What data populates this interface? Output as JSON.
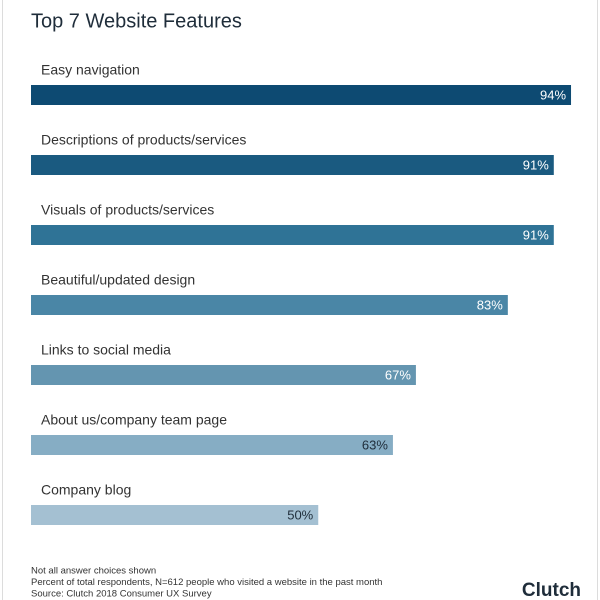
{
  "chart_data": {
    "type": "hbar",
    "title": "Top 7 Website Features",
    "categories": [
      "Easy navigation",
      "Descriptions of products/services",
      "Visuals of products/services",
      "Beautiful/updated design",
      "Links to social media",
      "About us/company team page",
      "Company blog"
    ],
    "values": [
      94,
      91,
      91,
      83,
      67,
      63,
      50
    ],
    "value_labels": [
      "94%",
      "91%",
      "91%",
      "83%",
      "67%",
      "63%",
      "50%"
    ],
    "colors": [
      "#0d4a72",
      "#1a5a80",
      "#2f7396",
      "#4a86a6",
      "#6495b0",
      "#86adc4",
      "#a4c0d2"
    ],
    "notes": [
      "Not all answer choices shown",
      "Percent of total respondents, N=612 people who visited a website in the past month",
      "Source: Clutch 2018 Consumer UX Survey"
    ],
    "logo": "Clutch"
  }
}
